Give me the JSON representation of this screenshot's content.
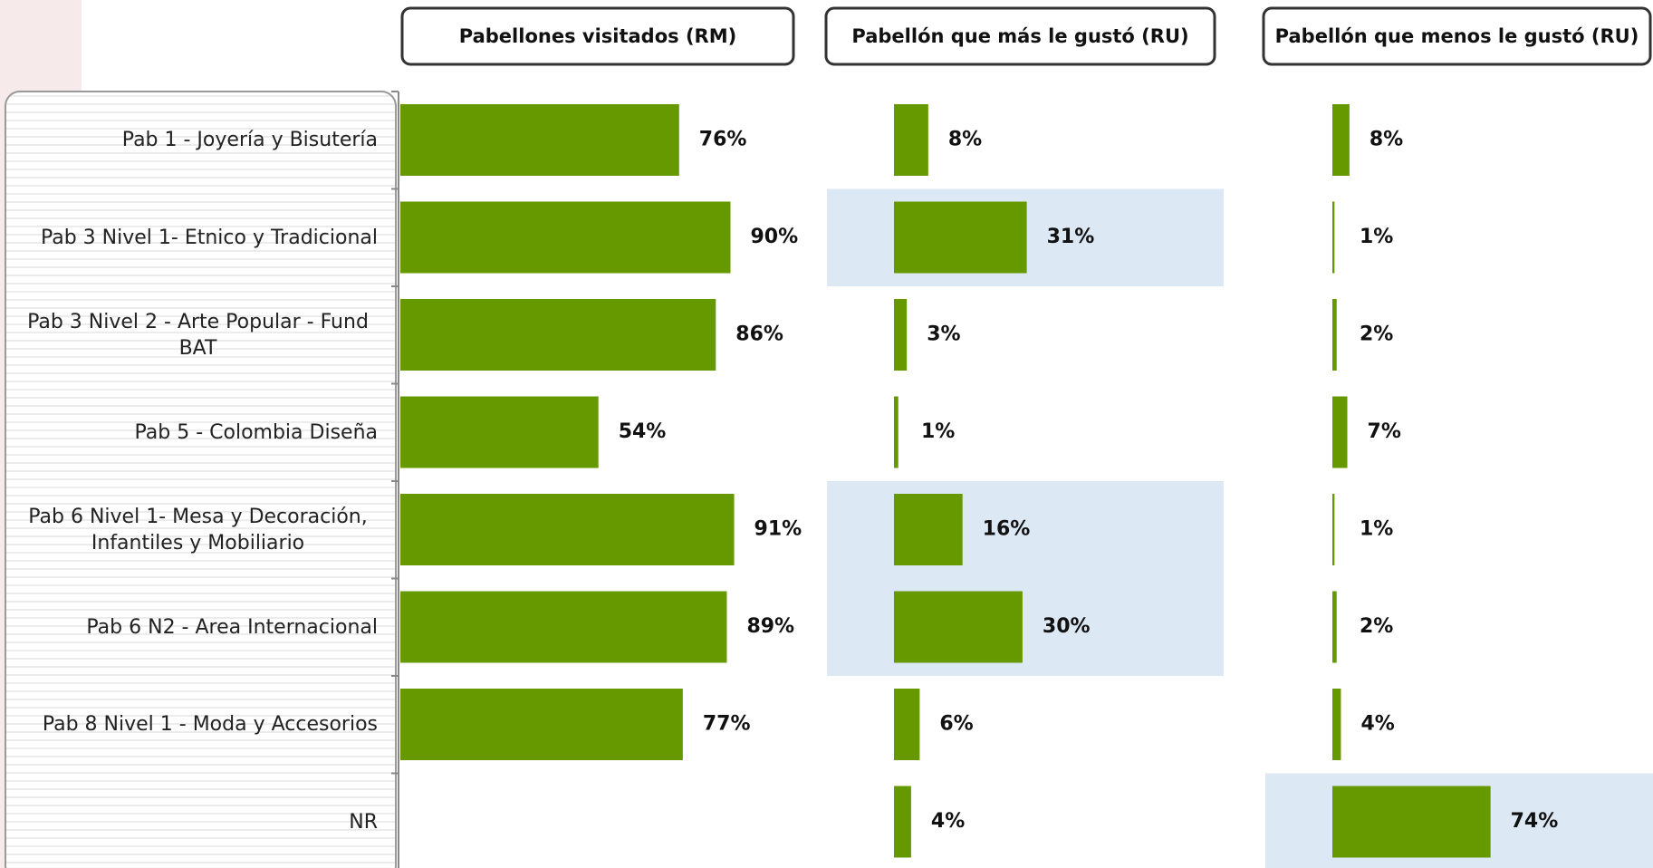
{
  "chart_data": {
    "type": "bar",
    "orientation": "horizontal",
    "color": "#669900",
    "highlight_color": "#dde8f5",
    "categories": [
      "Pab 1 - Joyería y Bisutería",
      "Pab 3 Nivel 1- Etnico y Tradicional",
      "Pab 3 Nivel 2 - Arte Popular - Fund BAT",
      "Pab 5 - Colombia Diseña",
      "Pab 6 Nivel 1- Mesa y Decoración, Infantiles y Mobiliario",
      "Pab 6 N2 - Area Internacional",
      "Pab 8 Nivel 1 - Moda y Accesorios",
      "NR"
    ],
    "series": [
      {
        "name": "Pabellones visitados (RM)",
        "values": [
          76,
          90,
          86,
          54,
          91,
          89,
          77,
          null
        ],
        "value_labels": [
          "76%",
          "90%",
          "86%",
          "54%",
          "91%",
          "89%",
          "77%",
          null
        ],
        "xlim": [
          0,
          100
        ],
        "highlight": []
      },
      {
        "name": "Pabellón que más le gustó (RU)",
        "values": [
          8,
          31,
          3,
          1,
          16,
          30,
          6,
          4
        ],
        "value_labels": [
          "8%",
          "31%",
          "3%",
          "1%",
          "16%",
          "30%",
          "6%",
          "4%"
        ],
        "xlim": [
          0,
          100
        ],
        "highlight": [
          1,
          4,
          5
        ]
      },
      {
        "name": "Pabellón que menos le gustó (RU)",
        "values": [
          8,
          1,
          2,
          7,
          1,
          2,
          4,
          74
        ],
        "value_labels": [
          "8%",
          "1%",
          "2%",
          "7%",
          "1%",
          "2%",
          "4%",
          "74%"
        ],
        "xlim": [
          0,
          100
        ],
        "highlight": [
          7
        ]
      }
    ]
  }
}
